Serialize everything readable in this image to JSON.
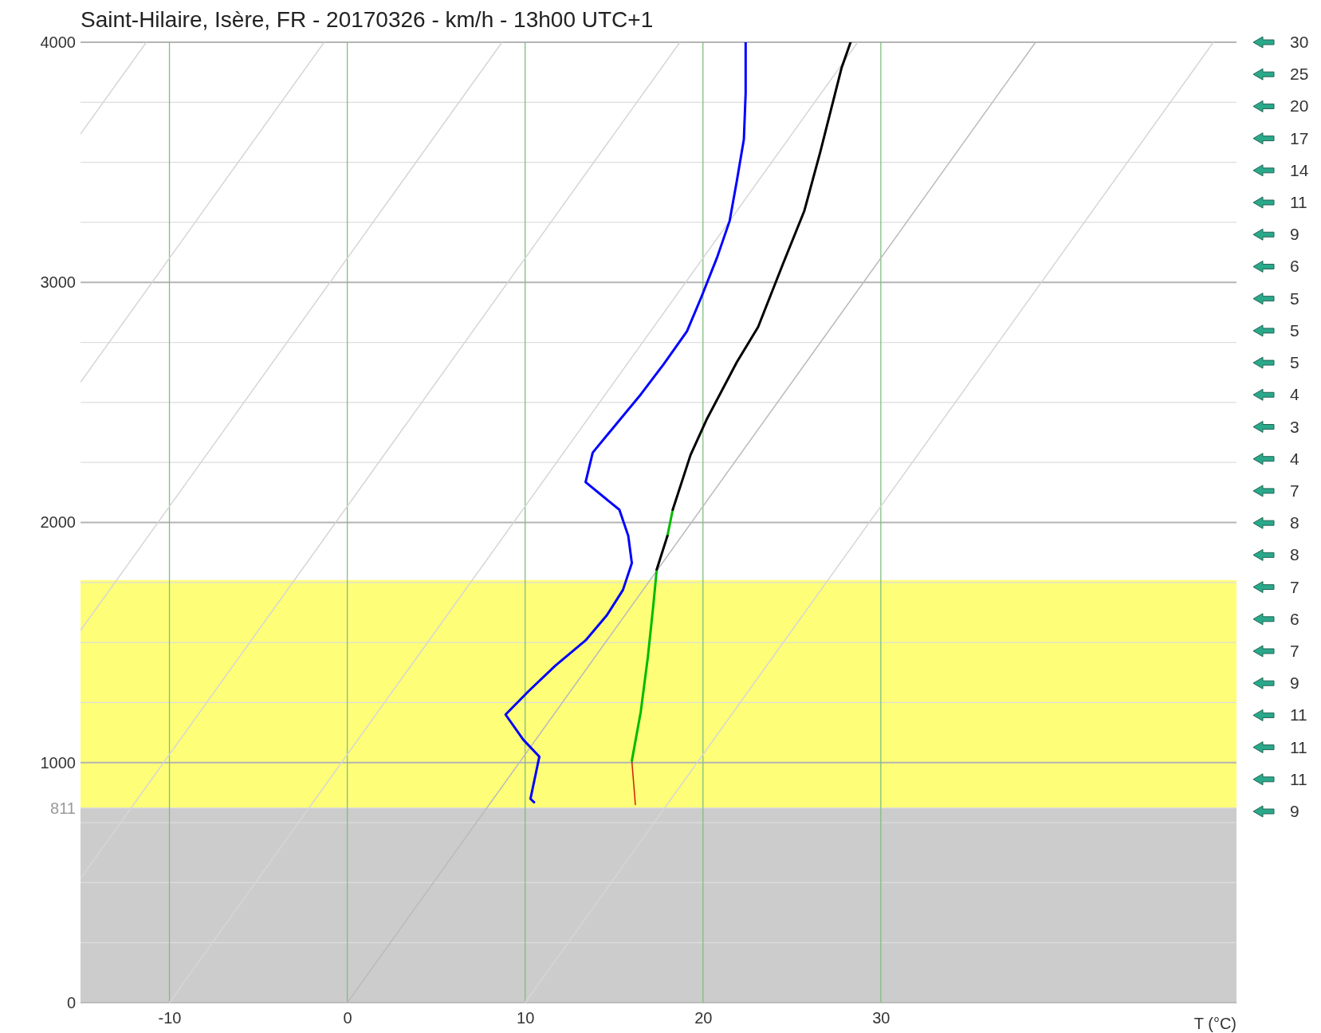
{
  "chart_data": {
    "type": "line",
    "title": "Saint-Hilaire, Isère, FR - 20170326 - km/h - 13h00 UTC+1",
    "xlabel": "T (°C)",
    "xlim": [
      -15,
      50
    ],
    "ylim": [
      0,
      4000
    ],
    "xticks": [
      -10,
      0,
      10,
      20,
      30
    ],
    "yticks": [
      0,
      {
        "value": 250,
        "label": null
      },
      {
        "value": 500,
        "label": null
      },
      {
        "value": 750,
        "label": null
      },
      {
        "value": 811,
        "label": "811"
      },
      1000,
      {
        "value": 1250,
        "label": null
      },
      {
        "value": 1500,
        "label": null
      },
      {
        "value": 1750,
        "label": null
      },
      2000,
      {
        "value": 2250,
        "label": null
      },
      {
        "value": 2500,
        "label": null
      },
      {
        "value": 2750,
        "label": null
      },
      3000,
      {
        "value": 3250,
        "label": null
      },
      {
        "value": 3500,
        "label": null
      },
      {
        "value": 3750,
        "label": null
      },
      4000
    ],
    "grid": true,
    "bands": [
      {
        "axis": "y",
        "from": 0,
        "to": 811,
        "color": "#cccccc"
      },
      {
        "axis": "y",
        "from": 811,
        "to": 1760,
        "color": "#fefe78"
      }
    ],
    "series": [
      {
        "color": "#d6d6d6",
        "x": [
          -15,
          -11.3
        ],
        "values": [
          3618,
          4000
        ]
      },
      {
        "color": "#d6d6d6",
        "x": [
          -15,
          -1.3
        ],
        "values": [
          2584,
          4000
        ]
      },
      {
        "color": "#d6d6d6",
        "x": [
          -15,
          8.7
        ],
        "values": [
          1550,
          4000
        ]
      },
      {
        "color": "#d6d6d6",
        "x": [
          -15,
          18.7
        ],
        "values": [
          517,
          4000
        ]
      },
      {
        "color": "#d6d6d6",
        "x": [
          -10,
          28.7
        ],
        "values": [
          0,
          4000
        ]
      },
      {
        "color": "#bbbbbb",
        "x": [
          0,
          38.7
        ],
        "values": [
          0,
          4000
        ]
      },
      {
        "color": "#d6d6d6",
        "x": [
          10,
          48.7
        ],
        "values": [
          0,
          4000
        ]
      },
      {
        "color": "#0000ff",
        "x": [
          10.5,
          10.3,
          10.8,
          9.9,
          8.9,
          10.2,
          11.7,
          13.4,
          14.6,
          15.5,
          16.0,
          15.8,
          15.3,
          13.4,
          13.8,
          16.5,
          17.8,
          19.1,
          19.9,
          20.8,
          21.5,
          21.9,
          22.3,
          22.4,
          22.4
        ],
        "values": [
          835,
          849,
          1025,
          1095,
          1200,
          1298,
          1404,
          1509,
          1614,
          1719,
          1831,
          1944,
          2053,
          2168,
          2291,
          2533,
          2660,
          2796,
          2937,
          3105,
          3256,
          3421,
          3596,
          3789,
          4000
        ]
      },
      {
        "color": "#cc2200",
        "x": [
          16.2,
          16.0
        ],
        "values": [
          825,
          1007
        ]
      },
      {
        "color": "#00bb00",
        "x": [
          16.0,
          16.5,
          16.9,
          17.2,
          17.4,
          17.6,
          18.0,
          18.3
        ],
        "values": [
          1007,
          1211,
          1439,
          1649,
          1804,
          null,
          1944,
          2053
        ]
      },
      {
        "color": "#000000",
        "x": [
          17.4,
          18.0,
          18.1,
          18.3,
          19.3,
          20.2,
          21.9,
          23.1,
          24.5,
          25.7,
          26.6,
          27.8,
          28.3
        ],
        "values": [
          1804,
          1944,
          null,
          2053,
          2281,
          2428,
          2667,
          2814,
          3077,
          3298,
          3544,
          3895,
          4000
        ]
      }
    ],
    "annotations": [
      "30",
      "25",
      "20",
      "17",
      "14",
      "11",
      "9",
      "6",
      "5",
      "5",
      "5",
      "4",
      "3",
      "4",
      "7",
      "8",
      "8",
      "7",
      "6",
      "7",
      "9",
      "11",
      "11",
      "11",
      "9"
    ]
  }
}
